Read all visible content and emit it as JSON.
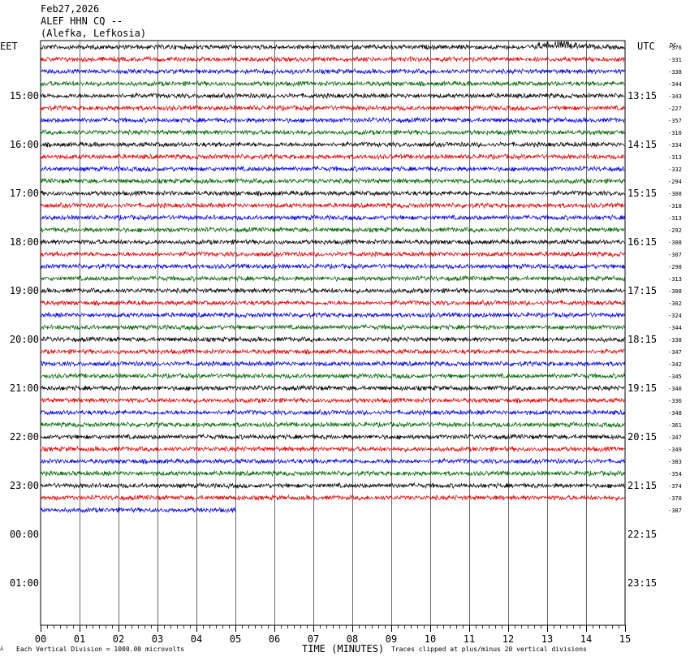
{
  "header": {
    "date": "Feb27,2026",
    "station": "ALEF HHN CQ --",
    "location": "(Alefka, Lefkosia)"
  },
  "footer": {
    "vertical_division": "Each Vertical Division = 1000.00 microvolts",
    "clip_note": "Traces clipped at plus/minus 20 vertical divisions"
  },
  "chart_data": {
    "type": "line",
    "xlabel": "TIME (MINUTES)",
    "x_ticks": [
      "00",
      "01",
      "02",
      "03",
      "04",
      "05",
      "06",
      "07",
      "08",
      "09",
      "10",
      "11",
      "12",
      "13",
      "14",
      "15"
    ],
    "xlim": [
      0,
      15
    ],
    "left_axis_label": "EET",
    "right_axis_label": "UTC",
    "dc_label": "DC",
    "left_hour_labels": [
      "15:00",
      "16:00",
      "17:00",
      "18:00",
      "19:00",
      "20:00",
      "21:00",
      "22:00",
      "23:00",
      "00:00",
      "01:00"
    ],
    "right_hour_labels": [
      "13:15",
      "14:15",
      "15:15",
      "16:15",
      "17:15",
      "18:15",
      "19:15",
      "20:15",
      "21:15",
      "22:15",
      "23:15"
    ],
    "row_minutes": 15,
    "trace_colors": [
      "#000000",
      "#e00000",
      "#0000e0",
      "#006400"
    ],
    "dc_offsets": [
      -376,
      -331,
      -338,
      -344,
      -343,
      -227,
      -357,
      -310,
      -334,
      -313,
      -332,
      -294,
      -308,
      -318,
      -313,
      -292,
      -308,
      -307,
      -298,
      -313,
      -308,
      -302,
      -324,
      -344,
      -338,
      -347,
      -342,
      -345,
      -340,
      -336,
      -348,
      -361,
      -347,
      -349,
      -383,
      -354,
      -374,
      -370,
      -387
    ],
    "last_trace_end_minute": 5,
    "event_note": "slight disturbance in first trace near minute 13"
  }
}
